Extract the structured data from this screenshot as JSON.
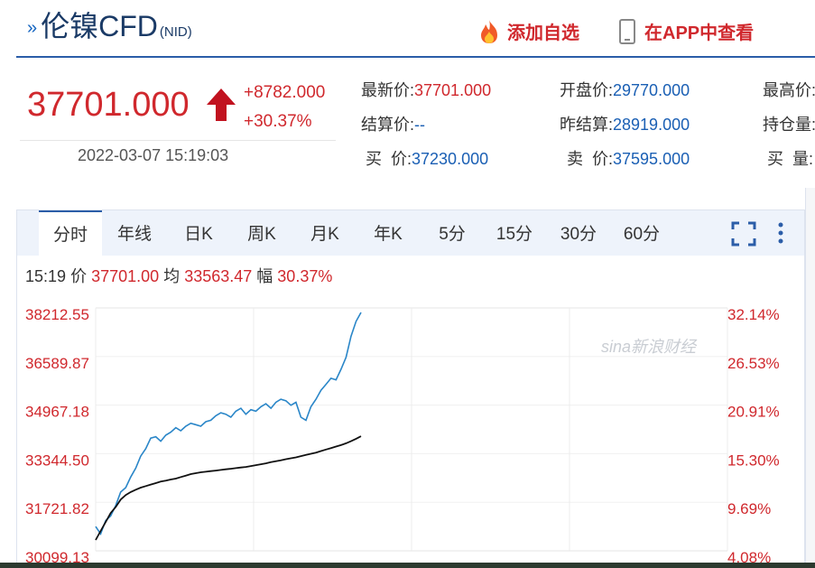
{
  "header": {
    "title": "伦镍CFD",
    "code": "(NID)",
    "watchlist_label": "添加自选",
    "app_label": "在APP中查看"
  },
  "quote": {
    "price": "37701.000",
    "change": "+8782.000",
    "change_pct": "+30.37%",
    "datetime": "2022-03-07 15:19:03",
    "latest_label": "最新价:",
    "latest": "37701.000",
    "open_label": "开盘价:",
    "open": "29770.000",
    "high_label": "最高价:",
    "settle_label": "结算价:",
    "settle": "--",
    "prev_settle_label": "昨结算:",
    "prev_settle": "28919.000",
    "oi_label": "持仓量:",
    "bid_label": "买  价:",
    "bid": "37230.000",
    "ask_label": "卖  价:",
    "ask": "37595.000",
    "bid_vol_label": "买  量:"
  },
  "tabs": [
    "分时",
    "年线",
    "日K",
    "周K",
    "月K",
    "年K",
    "5分",
    "15分",
    "30分",
    "60分"
  ],
  "info": {
    "time": "15:19",
    "price_label": "价",
    "price": "37701.00",
    "avg_label": "均",
    "avg": "33563.47",
    "amp_label": "幅",
    "amp": "30.37%"
  },
  "watermark": {
    "brand": "sina新浪财经"
  },
  "colors": {
    "up": "#d0282d",
    "price_line": "#2a86c8",
    "avg_line": "#111111",
    "accent": "#2b5da8"
  },
  "chart_data": {
    "type": "line",
    "ylim": [
      30099.13,
      38212.55
    ],
    "y_ticks_left": [
      "38212.55",
      "36589.87",
      "34967.18",
      "33344.50",
      "31721.82",
      "30099.13"
    ],
    "y_ticks_right": [
      "32.14%",
      "26.53%",
      "20.91%",
      "15.30%",
      "9.69%",
      "4.08%"
    ],
    "x_sessions": 4,
    "session_fraction_elapsed": 0.42,
    "series": [
      {
        "values": [
          30550,
          30300,
          30750,
          30900,
          31250,
          31700,
          31850,
          32200,
          32500,
          32900,
          33150,
          33500,
          33550,
          33400,
          33600,
          33700,
          33850,
          33750,
          33900,
          34000,
          33950,
          33900,
          34050,
          34100,
          34250,
          34350,
          34300,
          34200,
          34400,
          34500,
          34300,
          34450,
          34400,
          34550,
          34650,
          34500,
          34700,
          34800,
          34750,
          34600,
          34700,
          34200,
          34100,
          34550,
          34800,
          35100,
          35300,
          35500,
          35450,
          35800,
          36200,
          36900,
          37400,
          37701
        ]
      },
      {
        "values": [
          30099,
          30400,
          30700,
          31000,
          31200,
          31450,
          31600,
          31700,
          31780,
          31850,
          31900,
          31950,
          32000,
          32050,
          32080,
          32120,
          32150,
          32200,
          32250,
          32300,
          32330,
          32360,
          32380,
          32400,
          32420,
          32440,
          32460,
          32480,
          32500,
          32520,
          32540,
          32570,
          32600,
          32630,
          32660,
          32700,
          32730,
          32760,
          32800,
          32830,
          32860,
          32900,
          32940,
          32980,
          33020,
          33070,
          33120,
          33170,
          33220,
          33270,
          33330,
          33400,
          33480,
          33563.47
        ]
      }
    ]
  }
}
